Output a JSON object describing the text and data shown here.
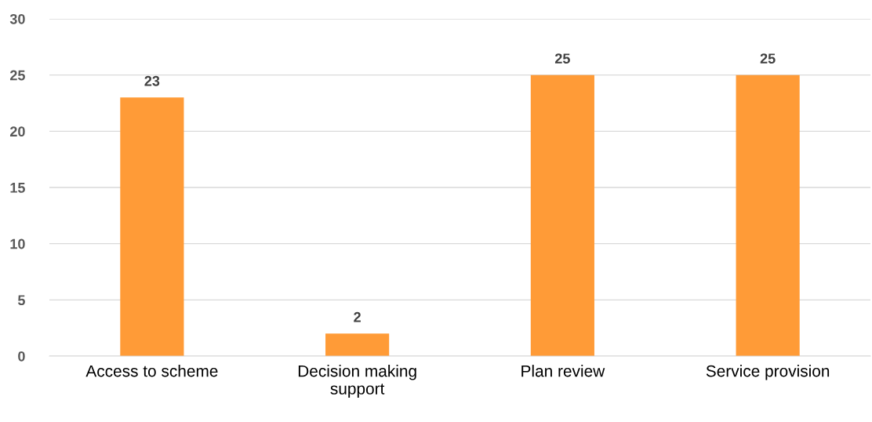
{
  "chart_data": {
    "type": "bar",
    "categories": [
      "Access to scheme",
      "Decision making\nsupport",
      "Plan review",
      "Service provision"
    ],
    "values": [
      23,
      2,
      25,
      25
    ],
    "color": "#ff9b37",
    "ylim": [
      0,
      30
    ],
    "yticks": [
      0,
      5,
      10,
      15,
      20,
      25,
      30
    ],
    "grid": "y",
    "data_labels": true
  }
}
